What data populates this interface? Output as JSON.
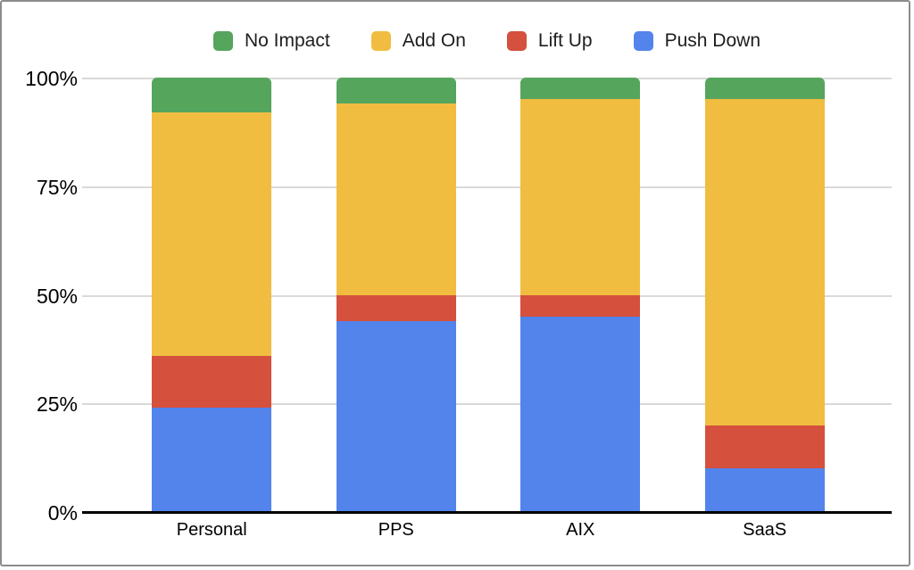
{
  "chart_data": {
    "type": "bar",
    "variant": "stacked-100-percent",
    "title": "",
    "xlabel": "",
    "ylabel": "",
    "categories": [
      "Personal",
      "PPS",
      "AIX",
      "SaaS"
    ],
    "series": [
      {
        "name": "No Impact",
        "color": "#56a55d",
        "values": [
          8,
          6,
          5,
          5
        ]
      },
      {
        "name": "Add On",
        "color": "#f0bd41",
        "values": [
          56,
          44,
          45,
          75
        ]
      },
      {
        "name": "Lift Up",
        "color": "#d5503d",
        "values": [
          12,
          6,
          5,
          10
        ]
      },
      {
        "name": "Push Down",
        "color": "#5384ec",
        "values": [
          24,
          44,
          45,
          10
        ]
      }
    ],
    "stack_order_bottom_to_top": [
      "Push Down",
      "Lift Up",
      "Add On",
      "No Impact"
    ],
    "yticks": [
      "0%",
      "25%",
      "50%",
      "75%",
      "100%"
    ],
    "ylim": [
      0,
      100
    ],
    "grid": true,
    "legend_position": "top"
  },
  "colors": {
    "background": "#ffffff",
    "frame_border": "#8c8c8c",
    "gridline": "#d9d9d9",
    "axis_line": "#000000",
    "text": "#1d1d1f"
  }
}
